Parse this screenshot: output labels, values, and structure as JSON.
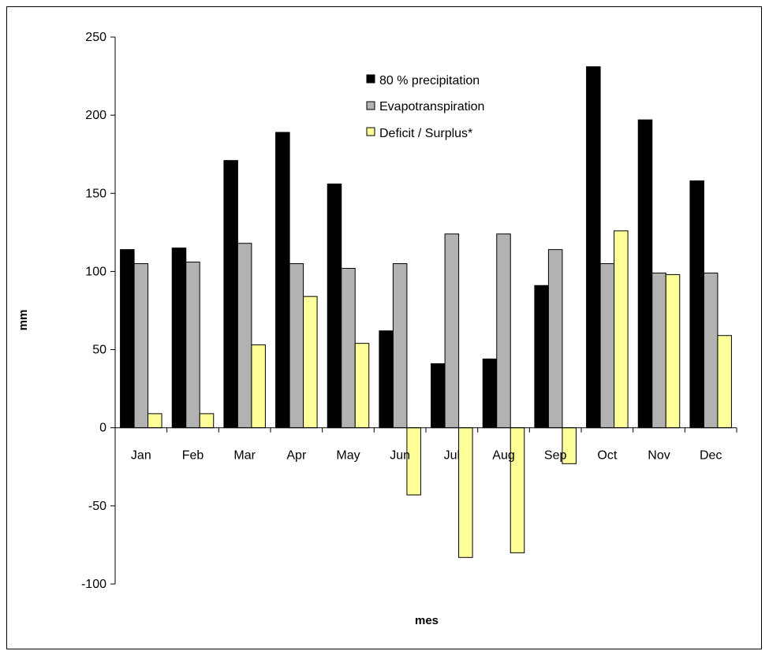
{
  "chart_data": {
    "type": "bar",
    "title": "",
    "xlabel": "mes",
    "ylabel": "mm",
    "ylim": [
      -100,
      250
    ],
    "yticks": [
      -100,
      -50,
      0,
      50,
      100,
      150,
      200,
      250
    ],
    "grid": false,
    "legend_position": "top-right",
    "categories": [
      "Jan",
      "Feb",
      "Mar",
      "Apr",
      "May",
      "Jun",
      "Jul",
      "Aug",
      "Sep",
      "Oct",
      "Nov",
      "Dec"
    ],
    "series": [
      {
        "name": "80 % precipitation",
        "color": "#000000",
        "values": [
          114,
          115,
          171,
          189,
          156,
          62,
          41,
          44,
          91,
          231,
          197,
          158
        ]
      },
      {
        "name": "Evapotranspiration",
        "color": "#b2b2b2",
        "values": [
          105,
          106,
          118,
          105,
          102,
          105,
          124,
          124,
          114,
          105,
          99,
          99
        ]
      },
      {
        "name": "Deficit / Surplus*",
        "color": "#ffff99",
        "values": [
          9,
          9,
          53,
          84,
          54,
          -43,
          -83,
          -80,
          -23,
          126,
          98,
          59
        ]
      }
    ]
  }
}
